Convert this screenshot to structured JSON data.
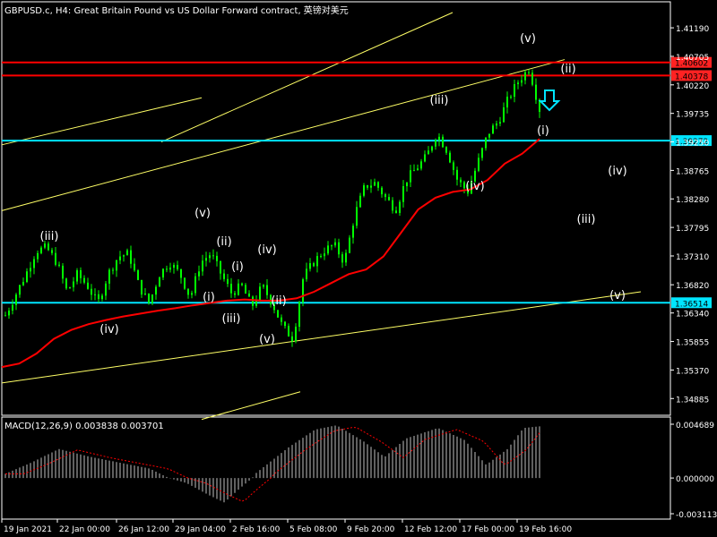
{
  "header": {
    "title": "GBPUSD.c, H4:  Great Britain Pound vs US Dollar Forward contract, 英镑对美元"
  },
  "colors": {
    "background": "#000000",
    "grid_frame": "#ffffff",
    "bull_candle": "#00ff00",
    "ma_line": "#ff0000",
    "channel_line": "#ffff66",
    "horizontal_red": "#ff0000",
    "horizontal_cyan": "#00e5ff",
    "price_label_red_bg": "#ff2222",
    "price_label_cyan_bg": "#00e5ff",
    "macd_hist": "#c0c0c0",
    "macd_signal": "#ff0000",
    "arrow": "#00e5ff"
  },
  "chart_data": [
    {
      "type": "candlestick",
      "symbol": "GBPUSD.c",
      "timeframe": "H4",
      "ylim": [
        1.346,
        1.4145
      ],
      "y_ticks": [
        "1.41190",
        "1.40705",
        "1.40220",
        "1.39735",
        "1.39250",
        "1.38765",
        "1.38280",
        "1.37795",
        "1.37310",
        "1.36820",
        "1.36340",
        "1.35855",
        "1.35370",
        "1.34885"
      ],
      "x_ticks": [
        "19 Jan 2021",
        "22 Jan 00:00",
        "26 Jan 12:00",
        "29 Jan 04:00",
        "2 Feb 16:00",
        "5 Feb 08:00",
        "9 Feb 20:00",
        "12 Feb 12:00",
        "17 Feb 00:00",
        "19 Feb 16:00"
      ],
      "price_path": [
        1.363,
        1.3665,
        1.37,
        1.374,
        1.3745,
        1.372,
        1.367,
        1.37,
        1.368,
        1.365,
        1.37,
        1.373,
        1.3735,
        1.368,
        1.365,
        1.37,
        1.372,
        1.37,
        1.366,
        1.372,
        1.3735,
        1.37,
        1.3668,
        1.368,
        1.3645,
        1.368,
        1.365,
        1.361,
        1.359,
        1.3695,
        1.372,
        1.374,
        1.375,
        1.372,
        1.38,
        1.385,
        1.3855,
        1.383,
        1.381,
        1.386,
        1.388,
        1.39,
        1.394,
        1.391,
        1.386,
        1.384,
        1.389,
        1.394,
        1.396,
        1.4,
        1.403,
        1.405,
        1.398
      ],
      "ma_path": [
        1.3542,
        1.3548,
        1.3565,
        1.359,
        1.3605,
        1.3615,
        1.3622,
        1.3628,
        1.3633,
        1.3638,
        1.3642,
        1.3647,
        1.3651,
        1.3655,
        1.3657,
        1.3655,
        1.3655,
        1.3659,
        1.367,
        1.3685,
        1.37,
        1.3708,
        1.373,
        1.377,
        1.381,
        1.383,
        1.384,
        1.3844,
        1.386,
        1.3888,
        1.3905,
        1.393
      ],
      "horizontal_levels": [
        {
          "price": "1.40602",
          "value": 1.40602,
          "color": "red"
        },
        {
          "price": "1.40378",
          "value": 1.40378,
          "color": "red"
        },
        {
          "price": "1.39272",
          "value": 1.39272,
          "color": "cyan"
        },
        {
          "price": "1.36514",
          "value": 1.36514,
          "color": "cyan"
        }
      ],
      "wave_labels": [
        "(iii)",
        "(iv)",
        "(v)",
        "(ii)",
        "(iv)",
        "(i)",
        "(iii)",
        "(i)",
        "(ii)",
        "(v)",
        "(iii)",
        "(iv)",
        "(v)",
        "(ii)",
        "(i)",
        "(iv)",
        "(iii)",
        "(v)"
      ]
    },
    {
      "type": "bar",
      "indicator": "MACD",
      "title": "MACD(12,26,9) 0.003838 0.003701",
      "ylim": [
        -0.003113,
        0.004689
      ],
      "y_ticks": [
        "0.004689",
        "0.000000",
        "-0.003113"
      ]
    }
  ]
}
